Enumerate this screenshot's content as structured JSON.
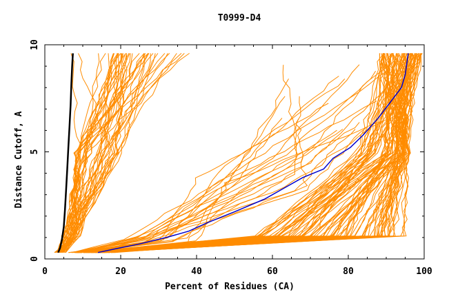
{
  "chart_data": {
    "type": "line",
    "title": "T0999-D4",
    "xlabel": "Percent of Residues (CA)",
    "ylabel": "Distance Cutoff, A",
    "xlim": [
      0,
      100
    ],
    "ylim": [
      0,
      10
    ],
    "x_ticks": [
      "0",
      "20",
      "40",
      "60",
      "80",
      "100"
    ],
    "y_ticks": [
      "0",
      "5",
      "10"
    ],
    "grid": false,
    "colors": {
      "bundle": "#ff8c00",
      "black_curve": "#000000",
      "blue_curve": "#0000cc",
      "frame": "#000000"
    },
    "series": [
      {
        "color": "#000000",
        "x": [
          3.5,
          4.0,
          4.5,
          5.0,
          5.3,
          5.6,
          5.9,
          6.2,
          6.5,
          6.8,
          7.0,
          7.2,
          7.4
        ],
        "y": [
          0.3,
          0.5,
          0.9,
          1.5,
          2.3,
          3.2,
          4.2,
          5.2,
          6.2,
          7.2,
          8.2,
          9.0,
          9.6
        ]
      },
      {
        "color": "#0000cc",
        "x": [
          14,
          18,
          25,
          32,
          38,
          43,
          50,
          58,
          63,
          68,
          73.5,
          76,
          80.5,
          84,
          88,
          91,
          94,
          95,
          95.8
        ],
        "y": [
          0.3,
          0.45,
          0.7,
          1.0,
          1.3,
          1.7,
          2.2,
          2.8,
          3.3,
          3.8,
          4.2,
          4.7,
          5.2,
          5.8,
          6.6,
          7.3,
          8.0,
          8.6,
          9.6
        ]
      }
    ]
  }
}
